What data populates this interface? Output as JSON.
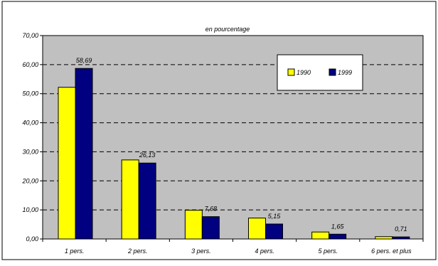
{
  "chart_data": {
    "type": "bar",
    "title": "en pourcentage",
    "categories": [
      "1 pers.",
      "2 pers.",
      "3 pers.",
      "4 pers.",
      "5 pers.",
      "6 pers. et plus"
    ],
    "series": [
      {
        "name": "1990",
        "values": [
          52.2,
          27.2,
          9.9,
          7.2,
          2.4,
          0.8
        ],
        "color": "#ffff00"
      },
      {
        "name": "1999",
        "values": [
          58.69,
          26.13,
          7.68,
          5.15,
          1.65,
          0.71
        ],
        "color": "#000080"
      }
    ],
    "data_labels": [
      "58,69",
      "26,13",
      "7,68",
      "5,15",
      "1,65",
      "0,71"
    ],
    "y_ticks": [
      "0,00",
      "10,00",
      "20,00",
      "30,00",
      "40,00",
      "50,00",
      "60,00",
      "70,00"
    ],
    "ylim": [
      0,
      70
    ],
    "grid": "horizontal dashed",
    "legend_position": "top-right",
    "plot_background": "#c0c0c0"
  }
}
